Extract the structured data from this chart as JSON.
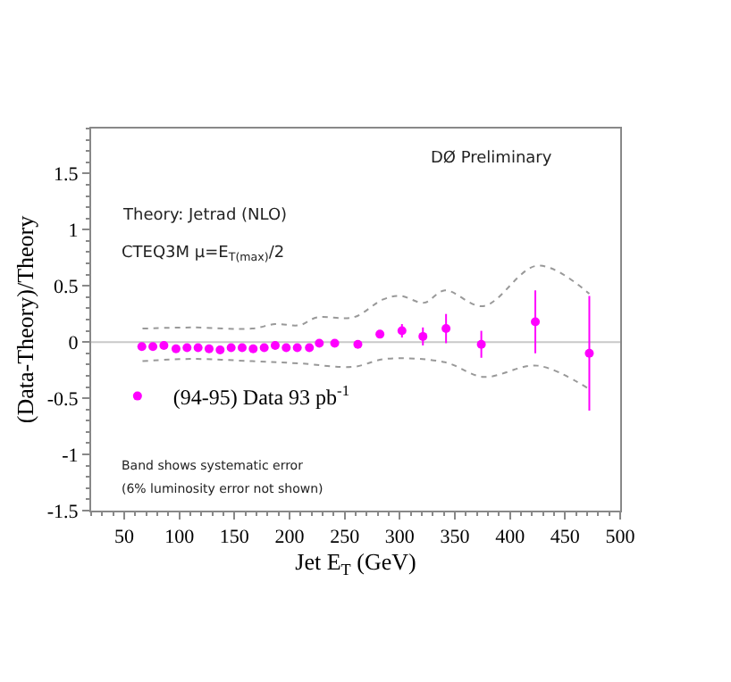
{
  "chart_data": {
    "type": "scatter",
    "xlabel": "Jet E$_{T}$ (GeV)",
    "ylabel": "(Data-Theory)/Theory",
    "annotations": [
      "DØ Preliminary",
      "Theory: Jetrad (NLO)",
      "CTEQ3M μ=E$_{T(max)}$/2",
      "Band shows systematic error",
      "(6% luminosity error not shown)"
    ],
    "xlim": [
      20,
      500
    ],
    "xticks": [
      50,
      100,
      150,
      200,
      250,
      300,
      350,
      400,
      450,
      500
    ],
    "ylim": [
      -1.5,
      1.9
    ],
    "yticks": [
      -1.5,
      -1,
      -0.5,
      0,
      0.5,
      1,
      1.5
    ],
    "grid": false,
    "legend": "left",
    "ref_lines": [
      {
        "axis": "y",
        "value": 0,
        "color": "#c8c8c8"
      }
    ],
    "series": [
      {
        "name": "(94-95) Data 93 pb$^{-1}$",
        "marker": "circle",
        "color": "#ff00ff",
        "x": [
          66,
          76,
          86,
          97,
          107,
          117,
          127,
          137,
          147,
          157,
          167,
          177,
          187,
          197,
          207,
          218,
          227,
          241,
          262,
          282,
          302,
          321,
          342,
          374,
          423,
          472
        ],
        "values": [
          -0.04,
          -0.04,
          -0.03,
          -0.06,
          -0.05,
          -0.05,
          -0.06,
          -0.07,
          -0.05,
          -0.05,
          -0.06,
          -0.05,
          -0.03,
          -0.05,
          -0.05,
          -0.05,
          -0.01,
          -0.01,
          -0.02,
          0.07,
          0.1,
          0.05,
          0.12,
          -0.02,
          0.18,
          -0.1
        ],
        "errors": [
          null,
          null,
          null,
          null,
          null,
          null,
          null,
          null,
          null,
          null,
          null,
          null,
          null,
          null,
          null,
          null,
          null,
          null,
          null,
          0.035,
          0.06,
          0.08,
          0.13,
          0.12,
          0.28,
          0.51
        ]
      },
      {
        "type": "line",
        "line_style": "dotted",
        "color": "#999999",
        "x": [
          66.6,
          112,
          166,
          187,
          209,
          225,
          258,
          285,
          301,
          322,
          341,
          376,
          425,
          472
        ],
        "values": [
          0.12,
          0.13,
          0.12,
          0.16,
          0.15,
          0.22,
          0.22,
          0.38,
          0.41,
          0.35,
          0.46,
          0.32,
          0.68,
          0.43
        ]
      },
      {
        "type": "line",
        "line_style": "dotted",
        "color": "#999999",
        "x": [
          66.6,
          112,
          166,
          209,
          258,
          287,
          341,
          376,
          425,
          472
        ],
        "values": [
          -0.17,
          -0.15,
          -0.17,
          -0.19,
          -0.22,
          -0.15,
          -0.18,
          -0.31,
          -0.21,
          -0.42
        ]
      }
    ]
  }
}
